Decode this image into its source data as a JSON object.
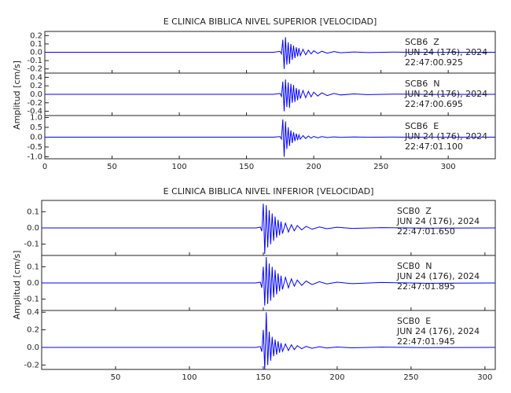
{
  "chart_data": [
    {
      "type": "line",
      "title": "E CLINICA BIBLICA NIVEL SUPERIOR [VELOCIDAD]",
      "ylabel": "Amplitud [cm/s]",
      "xlim": [
        0,
        335
      ],
      "xticks": [
        0,
        50,
        100,
        150,
        200,
        250,
        300
      ],
      "x": [
        0,
        50,
        100,
        150,
        170,
        175,
        176,
        177,
        178,
        179,
        180,
        181,
        182,
        183,
        184,
        185,
        186,
        187,
        188,
        189,
        190,
        192,
        194,
        196,
        198,
        200,
        203,
        206,
        210,
        215,
        220,
        230,
        240,
        260,
        290,
        335
      ],
      "panels": [
        {
          "name": "SCB6  Z",
          "date": "JUN 24 (176), 2024",
          "time": "22:47:00.925",
          "color": "#0000ff",
          "ylim": [
            -0.25,
            0.25
          ],
          "yticks": [
            0.2,
            0.1,
            {
              "value": 0,
              "label": "0.0"
            },
            -0.1,
            -0.2
          ],
          "values": [
            0,
            0,
            0,
            0,
            0,
            0.01,
            -0.02,
            0.15,
            -0.2,
            0.18,
            -0.15,
            0.12,
            -0.14,
            0.1,
            -0.09,
            0.08,
            -0.07,
            0.06,
            -0.05,
            0.05,
            -0.04,
            0.035,
            -0.03,
            0.025,
            -0.02,
            0.018,
            -0.015,
            0.012,
            -0.01,
            0.008,
            -0.006,
            0.004,
            -0.003,
            0.002,
            -0.001,
            0
          ]
        },
        {
          "name": "SCB6  N",
          "date": "JUN 24 (176), 2024",
          "time": "22:47:00.695",
          "color": "#0000ff",
          "ylim": [
            -0.5,
            0.5
          ],
          "yticks": [
            0.4,
            0.2,
            {
              "value": 0,
              "label": "0.0"
            },
            -0.2,
            -0.4
          ],
          "values": [
            0,
            0,
            0,
            0,
            0,
            0.02,
            -0.05,
            0.3,
            -0.4,
            0.35,
            -0.3,
            0.28,
            -0.32,
            0.25,
            -0.2,
            0.22,
            -0.18,
            0.15,
            -0.14,
            0.12,
            -0.1,
            0.09,
            -0.08,
            0.07,
            -0.06,
            0.05,
            -0.04,
            0.035,
            -0.03,
            0.02,
            -0.015,
            0.01,
            -0.008,
            0.005,
            -0.003,
            0
          ]
        },
        {
          "name": "SCB6  E",
          "date": "JUN 24 (176), 2024",
          "time": "22:47:01.100",
          "color": "#0000ff",
          "ylim": [
            -1.1,
            1.1
          ],
          "yticks": [
            {
              "value": 1,
              "label": "1.0"
            },
            0.5,
            {
              "value": 0,
              "label": "0.0"
            },
            -0.5,
            {
              "value": -1,
              "label": "-1.0"
            }
          ],
          "values": [
            0,
            0,
            0,
            0,
            0,
            0.03,
            -0.1,
            0.9,
            -1.0,
            0.8,
            -0.6,
            0.5,
            -0.45,
            0.35,
            -0.3,
            0.25,
            -0.2,
            0.18,
            -0.15,
            0.12,
            -0.1,
            0.08,
            -0.07,
            0.06,
            -0.05,
            0.04,
            -0.035,
            0.03,
            -0.02,
            0.015,
            -0.01,
            0.008,
            -0.005,
            0.003,
            -0.002,
            0
          ]
        }
      ]
    },
    {
      "type": "line",
      "title": "E CLINICA BIBLICA NIVEL INFERIOR [VELOCIDAD]",
      "ylabel": "Amplitud [cm/s]",
      "xlim": [
        0,
        307
      ],
      "xticks": [
        50,
        100,
        150,
        200,
        250,
        300
      ],
      "x": [
        0,
        50,
        100,
        140,
        145,
        148,
        149,
        150,
        151,
        152,
        153,
        154,
        155,
        156,
        157,
        158,
        159,
        160,
        161,
        162,
        163,
        165,
        167,
        169,
        171,
        173,
        176,
        179,
        183,
        188,
        193,
        200,
        210,
        230,
        260,
        307
      ],
      "panels": [
        {
          "name": "SCB0  Z",
          "date": "JUN 24 (176), 2024",
          "time": "22:47:01.650",
          "color": "#0000ff",
          "ylim": [
            -0.17,
            0.17
          ],
          "yticks": [
            0.1,
            {
              "value": 0,
              "label": "0.0"
            },
            -0.1
          ],
          "values": [
            0,
            0,
            0,
            0,
            0,
            0.005,
            -0.02,
            0.15,
            -0.16,
            0.14,
            -0.12,
            0.11,
            -0.1,
            0.09,
            -0.08,
            0.07,
            -0.06,
            0.05,
            -0.045,
            0.04,
            -0.035,
            0.03,
            -0.025,
            0.02,
            -0.018,
            0.015,
            -0.012,
            0.01,
            -0.008,
            0.006,
            -0.005,
            0.004,
            -0.003,
            0.002,
            -0.001,
            0
          ]
        },
        {
          "name": "SCB0  N",
          "date": "JUN 24 (176), 2024",
          "time": "22:47:01.895",
          "color": "#0000ff",
          "ylim": [
            -0.17,
            0.17
          ],
          "yticks": [
            0.1,
            {
              "value": 0,
              "label": "0.0"
            },
            -0.1
          ],
          "values": [
            0,
            0,
            0,
            0,
            0,
            0.005,
            -0.03,
            0.1,
            -0.14,
            0.16,
            -0.13,
            0.12,
            -0.11,
            0.1,
            -0.09,
            0.08,
            -0.07,
            0.06,
            -0.05,
            0.045,
            -0.04,
            0.035,
            -0.03,
            0.025,
            -0.02,
            0.018,
            -0.015,
            0.012,
            -0.01,
            0.008,
            -0.006,
            0.005,
            -0.004,
            0.003,
            -0.002,
            0
          ]
        },
        {
          "name": "SCB0  E",
          "date": "JUN 24 (176), 2024",
          "time": "22:47:01.945",
          "color": "#0000ff",
          "ylim": [
            -0.25,
            0.42
          ],
          "yticks": [
            0.4,
            0.2,
            {
              "value": 0,
              "label": "0.0"
            },
            -0.2
          ],
          "values": [
            0,
            0,
            0,
            0,
            0,
            0.01,
            -0.05,
            0.2,
            -0.25,
            0.4,
            -0.2,
            0.18,
            -0.15,
            0.12,
            -0.1,
            0.09,
            -0.08,
            0.07,
            -0.06,
            0.05,
            -0.045,
            0.04,
            -0.035,
            0.03,
            -0.025,
            0.02,
            -0.015,
            0.012,
            -0.01,
            0.008,
            -0.006,
            0.005,
            -0.004,
            0.003,
            -0.002,
            0
          ]
        }
      ]
    }
  ]
}
